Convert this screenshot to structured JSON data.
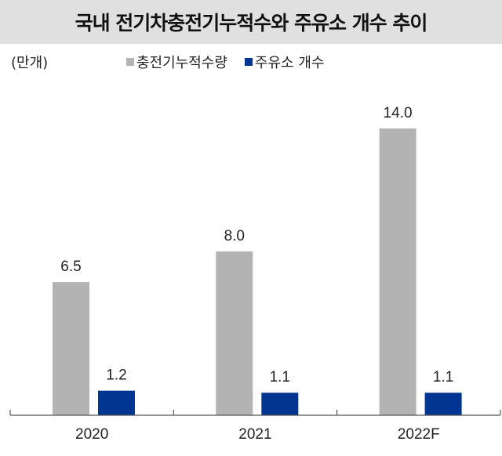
{
  "chart_data": {
    "type": "bar",
    "title": "국내 전기차충전기누적수와 주유소 개수 추이",
    "unit_label": "(만개)",
    "categories": [
      "2020",
      "2021",
      "2022F"
    ],
    "series": [
      {
        "name": "충전기누적수량",
        "values": [
          6.5,
          8.0,
          14.0
        ],
        "color": "#b3b3b3"
      },
      {
        "name": "주유소 개수",
        "values": [
          1.2,
          1.1,
          1.1
        ],
        "color": "#003591"
      }
    ],
    "data_labels": [
      [
        "6.5",
        "8.0",
        "14.0"
      ],
      [
        "1.2",
        "1.1",
        "1.1"
      ]
    ],
    "ylim": [
      0,
      14
    ],
    "grid": false,
    "legend_position": "top"
  }
}
